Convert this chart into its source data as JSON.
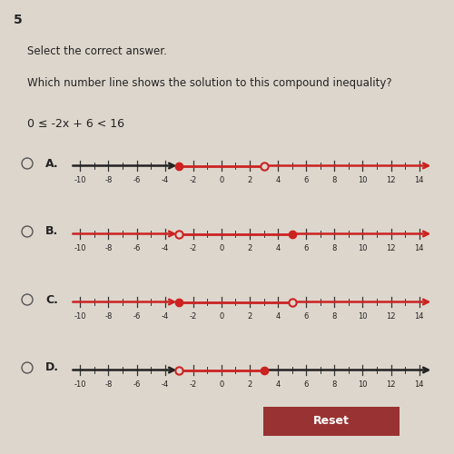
{
  "title_num": "5",
  "instruction": "Select the correct answer.",
  "question": "Which number line shows the solution to this compound inequality?",
  "inequality": "0 ≤ -2x + 6 < 16",
  "background_color": "#ddd6cc",
  "options": [
    "A",
    "B.",
    "C.",
    "D."
  ],
  "number_lines": [
    {
      "label": "A.",
      "left_arrow_color": "#222222",
      "right_arrow_color": "#cc2222",
      "line_color": "#cc2222",
      "dot1": {
        "x": -3,
        "filled": true
      },
      "dot2": {
        "x": 3,
        "filled": false
      }
    },
    {
      "label": "B.",
      "left_arrow_color": "#cc2222",
      "right_arrow_color": "#cc2222",
      "line_color": "#cc2222",
      "dot1": {
        "x": -3,
        "filled": false
      },
      "dot2": {
        "x": 5,
        "filled": true
      }
    },
    {
      "label": "C.",
      "left_arrow_color": "#cc2222",
      "right_arrow_color": "#cc2222",
      "line_color": "#cc2222",
      "dot1": {
        "x": -3,
        "filled": true
      },
      "dot2": {
        "x": 5,
        "filled": false
      }
    },
    {
      "label": "D.",
      "left_arrow_color": "#222222",
      "right_arrow_color": "#222222",
      "line_color": "#cc2222",
      "dot1": {
        "x": -3,
        "filled": false
      },
      "dot2": {
        "x": 3,
        "filled": true
      }
    }
  ],
  "xmin": -11.5,
  "xmax": 15.5,
  "tick_positions": [
    -10,
    -8,
    -6,
    -4,
    -2,
    0,
    2,
    4,
    6,
    8,
    10,
    12,
    14
  ],
  "reset_button_color": "#993333",
  "reset_button_text": "Reset"
}
